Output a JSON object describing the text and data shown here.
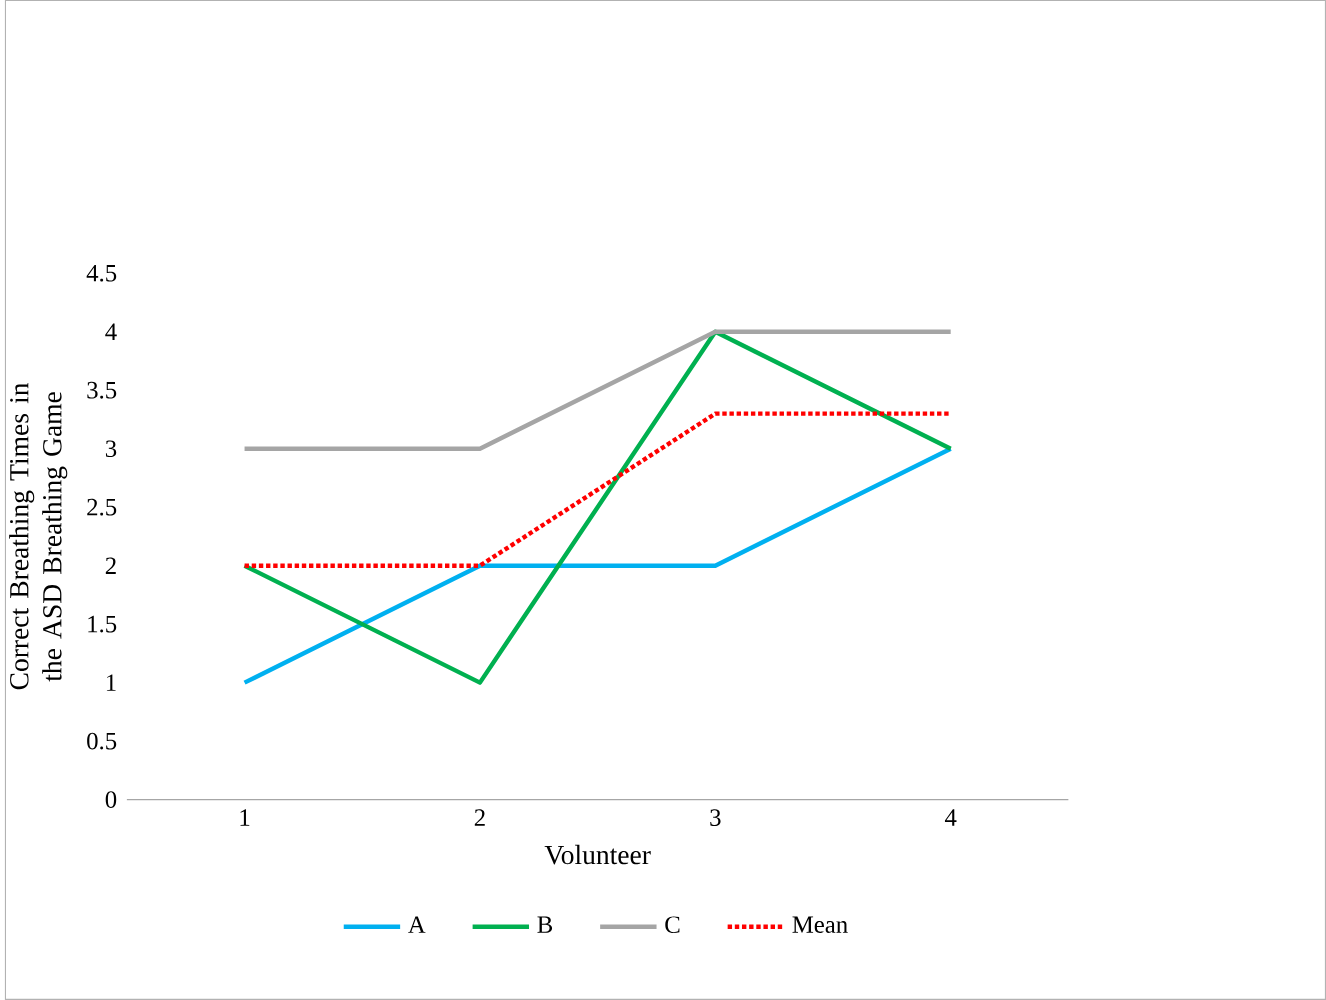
{
  "chart_data": {
    "type": "line",
    "xlabel": "Volunteer",
    "ylabel": "Correct Breathing Times in the ASD Breathing Game",
    "categories": [
      "1",
      "2",
      "3",
      "4"
    ],
    "series": [
      {
        "name": "A",
        "color": "#00b0f0",
        "values": [
          1,
          2,
          2,
          3
        ]
      },
      {
        "name": "B",
        "color": "#00b050",
        "values": [
          2,
          1,
          4,
          3
        ]
      },
      {
        "name": "C",
        "color": "#a5a5a5",
        "values": [
          3,
          3,
          4,
          4
        ]
      },
      {
        "name": "Mean",
        "color": "#ff0000",
        "values": [
          2,
          2,
          3.3,
          3.3
        ],
        "line_style": "dotted"
      }
    ],
    "ylim": [
      0,
      4.5
    ],
    "yticks": [
      0,
      0.5,
      1,
      1.5,
      2,
      2.5,
      3,
      3.5,
      4,
      4.5
    ],
    "grid": false,
    "legend": "bottom",
    "marker": "none"
  }
}
